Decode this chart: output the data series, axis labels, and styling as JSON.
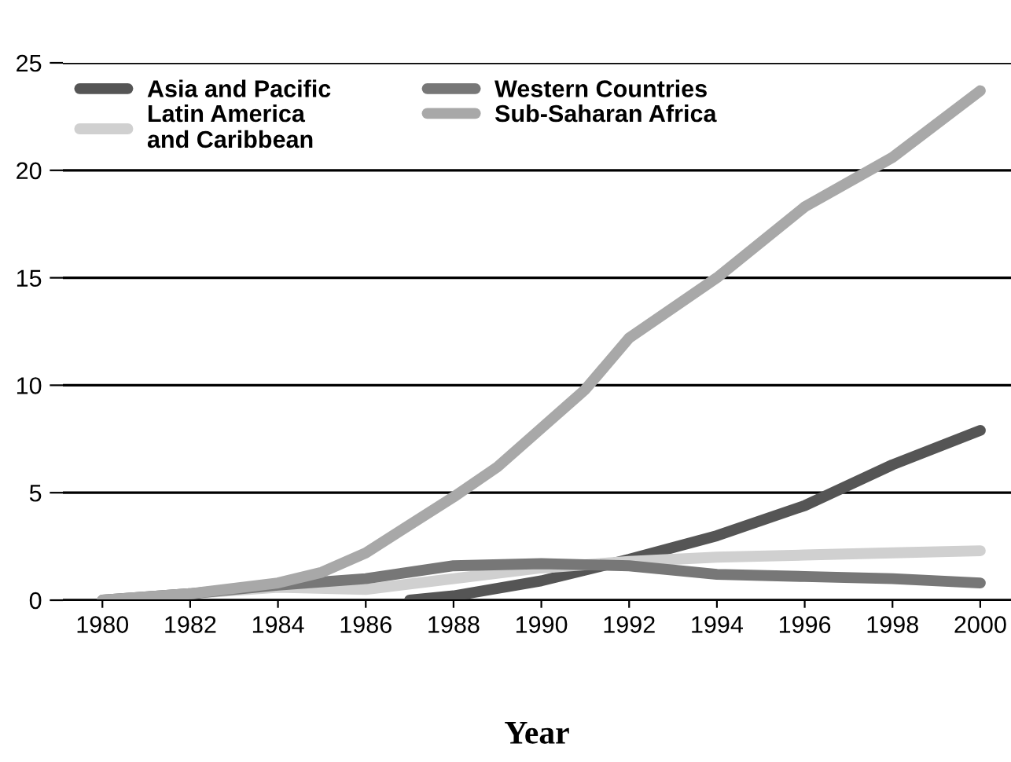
{
  "chart_data": {
    "type": "line",
    "xlabel": "Year",
    "x": [
      1980,
      1982,
      1984,
      1985,
      1986,
      1988,
      1989,
      1990,
      1991,
      1992,
      1994,
      1996,
      1998,
      2000
    ],
    "series": [
      {
        "name": "Asia and Pacific",
        "color": "#555555",
        "x": [
          1987,
          1988,
          1990,
          1992,
          1994,
          1996,
          1998,
          2000
        ],
        "values": [
          0,
          0.2,
          0.9,
          1.9,
          3.0,
          4.4,
          6.3,
          7.9
        ]
      },
      {
        "name": "Latin America\nand Caribbean",
        "color": "#d0d0d0",
        "x": [
          1980,
          1982,
          1984,
          1986,
          1988,
          1990,
          1992,
          1994,
          1996,
          1998,
          2000
        ],
        "values": [
          0,
          0.3,
          0.6,
          0.5,
          1.0,
          1.5,
          1.8,
          2.0,
          2.1,
          2.2,
          2.3
        ]
      },
      {
        "name": "Western Countries",
        "color": "#777777",
        "x": [
          1980,
          1982,
          1984,
          1986,
          1988,
          1990,
          1992,
          1994,
          1996,
          1998,
          2000
        ],
        "values": [
          0,
          0.3,
          0.7,
          1.0,
          1.6,
          1.7,
          1.6,
          1.2,
          1.1,
          1.0,
          0.8
        ]
      },
      {
        "name": "Sub-Saharan Africa",
        "color": "#a8a8a8",
        "values": [
          0,
          0.3,
          0.8,
          1.3,
          2.2,
          4.8,
          6.2,
          8.0,
          9.8,
          12.2,
          15.0,
          18.3,
          20.6,
          23.7
        ]
      }
    ],
    "xlim": [
      1979.1,
      2000.7
    ],
    "xticks": [
      1980,
      1982,
      1984,
      1986,
      1988,
      1990,
      1992,
      1994,
      1996,
      1998,
      2000
    ],
    "ylim": [
      0,
      25
    ],
    "yticks": [
      0,
      5,
      10,
      15,
      20,
      25
    ],
    "grid": "y",
    "legend": "top left",
    "line_style": "solid"
  }
}
